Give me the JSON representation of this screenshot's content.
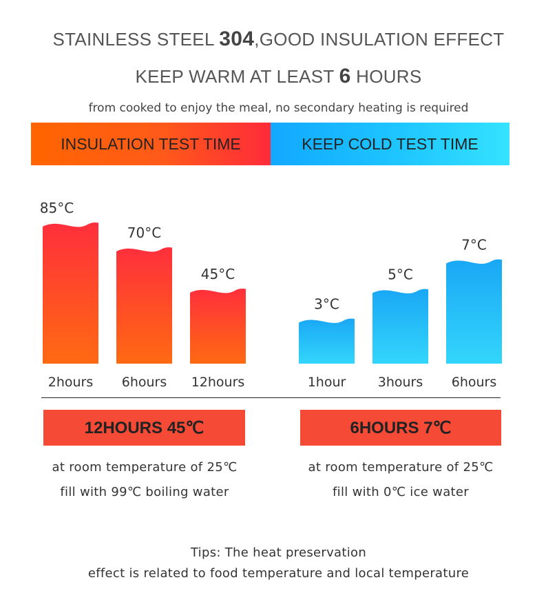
{
  "header": {
    "line1_prefix": "STAINLESS STEEL ",
    "line1_number": "304",
    "line1_suffix": ",GOOD INSULATION EFFECT",
    "line2_prefix": "KEEP WARM AT LEAST ",
    "line2_number": "6",
    "line2_suffix": " HOURS",
    "subtitle": "from cooked to enjoy the meal, no secondary heating is required"
  },
  "banners": {
    "insulation": "INSULATION TEST TIME",
    "cold": "KEEP COLD TEST TIME"
  },
  "colors": {
    "hot_top": "#ff2f3c",
    "hot_bottom": "#ff6a12",
    "cold_top": "#1aa7f5",
    "cold_bottom": "#33d6fb",
    "summary_box": "#f44a36"
  },
  "chart_data": [
    {
      "type": "bar",
      "title": "INSULATION TEST TIME",
      "categories": [
        "2hours",
        "6hours",
        "12hours"
      ],
      "values": [
        85,
        70,
        45
      ],
      "value_labels": [
        "85°C",
        "70°C",
        "45°C"
      ],
      "unit": "°C",
      "ylim": [
        0,
        90
      ],
      "grid": false
    },
    {
      "type": "bar",
      "title": "KEEP COLD TEST TIME",
      "categories": [
        "1hour",
        "3hours",
        "6hours"
      ],
      "values": [
        3,
        5,
        7
      ],
      "value_labels": [
        "3°C",
        "5°C",
        "7°C"
      ],
      "unit": "°C",
      "ylim": [
        0,
        9
      ],
      "grid": false
    }
  ],
  "summaries": {
    "hot": {
      "title": "12HOURS 45℃",
      "line1": "at room temperature of 25℃",
      "line2": "fill with 99℃ boiling water"
    },
    "cold": {
      "title": "6HOURS 7℃",
      "line1": "at room temperature of 25℃",
      "line2": "fill with 0℃ ice water"
    }
  },
  "tips": {
    "line1": "Tips: The heat preservation",
    "line2": "effect is related to food temperature and local temperature"
  }
}
